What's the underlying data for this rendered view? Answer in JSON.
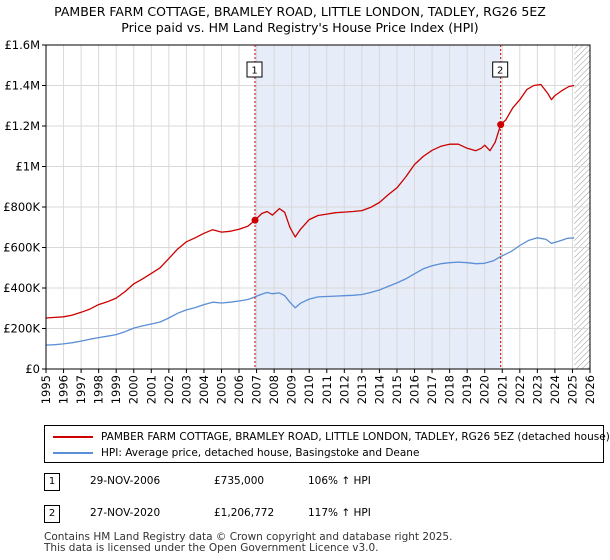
{
  "chart_data": {
    "type": "line",
    "title": "PAMBER FARM COTTAGE, BRAMLEY ROAD, LITTLE LONDON, TADLEY, RG26 5EZ",
    "subtitle": "Price paid vs. HM Land Registry's House Price Index (HPI)",
    "xlabel": "",
    "ylabel": "",
    "xlim": [
      1995,
      2026
    ],
    "ylim": [
      0,
      1600000
    ],
    "y_ticks": [
      {
        "value": 0,
        "label": "£0"
      },
      {
        "value": 200000,
        "label": "£200K"
      },
      {
        "value": 400000,
        "label": "£400K"
      },
      {
        "value": 600000,
        "label": "£600K"
      },
      {
        "value": 800000,
        "label": "£800K"
      },
      {
        "value": 1000000,
        "label": "£1M"
      },
      {
        "value": 1200000,
        "label": "£1.2M"
      },
      {
        "value": 1400000,
        "label": "£1.4M"
      },
      {
        "value": 1600000,
        "label": "£1.6M"
      }
    ],
    "x_ticks": [
      "1995",
      "1996",
      "1997",
      "1998",
      "1999",
      "2000",
      "2001",
      "2002",
      "2003",
      "2004",
      "2005",
      "2006",
      "2007",
      "2008",
      "2009",
      "2010",
      "2011",
      "2012",
      "2013",
      "2014",
      "2015",
      "2016",
      "2017",
      "2018",
      "2019",
      "2020",
      "2021",
      "2022",
      "2023",
      "2024",
      "2025",
      "2026"
    ],
    "grid": true,
    "shaded_period": [
      2006.91,
      2020.91
    ],
    "forecast_hatch_from": 2025.1,
    "series": [
      {
        "name": "PAMBER FARM COTTAGE, BRAMLEY ROAD, LITTLE LONDON, TADLEY, RG26 5EZ (detached house)",
        "color": "#cc0000",
        "points": [
          [
            1995.0,
            252000
          ],
          [
            1995.5,
            255000
          ],
          [
            1996.0,
            258000
          ],
          [
            1996.5,
            266000
          ],
          [
            1997.0,
            280000
          ],
          [
            1997.5,
            296000
          ],
          [
            1998.0,
            318000
          ],
          [
            1998.5,
            332000
          ],
          [
            1999.0,
            350000
          ],
          [
            1999.5,
            382000
          ],
          [
            2000.0,
            420000
          ],
          [
            2000.5,
            445000
          ],
          [
            2001.0,
            472000
          ],
          [
            2001.5,
            500000
          ],
          [
            2002.0,
            545000
          ],
          [
            2002.5,
            592000
          ],
          [
            2003.0,
            628000
          ],
          [
            2003.5,
            648000
          ],
          [
            2004.0,
            670000
          ],
          [
            2004.5,
            688000
          ],
          [
            2005.0,
            676000
          ],
          [
            2005.5,
            680000
          ],
          [
            2006.0,
            690000
          ],
          [
            2006.5,
            705000
          ],
          [
            2006.91,
            735000
          ],
          [
            2007.3,
            768000
          ],
          [
            2007.6,
            778000
          ],
          [
            2007.9,
            760000
          ],
          [
            2008.3,
            792000
          ],
          [
            2008.6,
            774000
          ],
          [
            2008.9,
            700000
          ],
          [
            2009.2,
            652000
          ],
          [
            2009.5,
            690000
          ],
          [
            2010.0,
            738000
          ],
          [
            2010.5,
            758000
          ],
          [
            2011.0,
            765000
          ],
          [
            2011.5,
            772000
          ],
          [
            2012.0,
            775000
          ],
          [
            2012.5,
            778000
          ],
          [
            2013.0,
            782000
          ],
          [
            2013.5,
            798000
          ],
          [
            2014.0,
            822000
          ],
          [
            2014.5,
            860000
          ],
          [
            2015.0,
            895000
          ],
          [
            2015.5,
            948000
          ],
          [
            2016.0,
            1010000
          ],
          [
            2016.5,
            1050000
          ],
          [
            2017.0,
            1080000
          ],
          [
            2017.5,
            1100000
          ],
          [
            2018.0,
            1110000
          ],
          [
            2018.5,
            1110000
          ],
          [
            2019.0,
            1090000
          ],
          [
            2019.5,
            1078000
          ],
          [
            2019.8,
            1090000
          ],
          [
            2020.0,
            1105000
          ],
          [
            2020.3,
            1078000
          ],
          [
            2020.6,
            1120000
          ],
          [
            2020.91,
            1206772
          ],
          [
            2021.2,
            1230000
          ],
          [
            2021.6,
            1290000
          ],
          [
            2022.0,
            1330000
          ],
          [
            2022.4,
            1380000
          ],
          [
            2022.8,
            1400000
          ],
          [
            2023.2,
            1405000
          ],
          [
            2023.6,
            1360000
          ],
          [
            2023.8,
            1330000
          ],
          [
            2024.0,
            1350000
          ],
          [
            2024.4,
            1375000
          ],
          [
            2024.8,
            1395000
          ],
          [
            2025.1,
            1400000
          ]
        ]
      },
      {
        "name": "HPI: Average price, detached house, Basingstoke and Deane",
        "color": "#5b8fd6",
        "points": [
          [
            1995.0,
            118000
          ],
          [
            1995.5,
            120000
          ],
          [
            1996.0,
            124000
          ],
          [
            1996.5,
            130000
          ],
          [
            1997.0,
            138000
          ],
          [
            1997.5,
            147000
          ],
          [
            1998.0,
            155000
          ],
          [
            1998.5,
            162000
          ],
          [
            1999.0,
            170000
          ],
          [
            1999.5,
            184000
          ],
          [
            2000.0,
            202000
          ],
          [
            2000.5,
            213000
          ],
          [
            2001.0,
            222000
          ],
          [
            2001.5,
            232000
          ],
          [
            2002.0,
            252000
          ],
          [
            2002.5,
            275000
          ],
          [
            2003.0,
            292000
          ],
          [
            2003.5,
            303000
          ],
          [
            2004.0,
            318000
          ],
          [
            2004.5,
            330000
          ],
          [
            2005.0,
            326000
          ],
          [
            2005.5,
            330000
          ],
          [
            2006.0,
            336000
          ],
          [
            2006.5,
            343000
          ],
          [
            2006.91,
            356000
          ],
          [
            2007.3,
            370000
          ],
          [
            2007.6,
            378000
          ],
          [
            2007.9,
            372000
          ],
          [
            2008.3,
            376000
          ],
          [
            2008.6,
            362000
          ],
          [
            2008.9,
            330000
          ],
          [
            2009.2,
            302000
          ],
          [
            2009.5,
            325000
          ],
          [
            2010.0,
            345000
          ],
          [
            2010.5,
            356000
          ],
          [
            2011.0,
            358000
          ],
          [
            2011.5,
            360000
          ],
          [
            2012.0,
            362000
          ],
          [
            2012.5,
            364000
          ],
          [
            2013.0,
            368000
          ],
          [
            2013.5,
            378000
          ],
          [
            2014.0,
            390000
          ],
          [
            2014.5,
            408000
          ],
          [
            2015.0,
            425000
          ],
          [
            2015.5,
            445000
          ],
          [
            2016.0,
            470000
          ],
          [
            2016.5,
            495000
          ],
          [
            2017.0,
            510000
          ],
          [
            2017.5,
            520000
          ],
          [
            2018.0,
            525000
          ],
          [
            2018.5,
            528000
          ],
          [
            2019.0,
            525000
          ],
          [
            2019.5,
            520000
          ],
          [
            2020.0,
            522000
          ],
          [
            2020.5,
            535000
          ],
          [
            2020.91,
            555000
          ],
          [
            2021.5,
            580000
          ],
          [
            2022.0,
            610000
          ],
          [
            2022.5,
            635000
          ],
          [
            2023.0,
            648000
          ],
          [
            2023.5,
            640000
          ],
          [
            2023.8,
            620000
          ],
          [
            2024.2,
            630000
          ],
          [
            2024.7,
            645000
          ],
          [
            2025.1,
            648000
          ]
        ]
      }
    ],
    "sales": [
      {
        "label": "1",
        "date": "29-NOV-2006",
        "x": 2006.91,
        "price": 735000,
        "price_text": "£735,000",
        "hpi_text": "106% ↑ HPI"
      },
      {
        "label": "2",
        "date": "27-NOV-2020",
        "x": 2020.91,
        "price": 1206772,
        "price_text": "£1,206,772",
        "hpi_text": "117% ↑ HPI"
      }
    ]
  },
  "footer": {
    "line1": "Contains HM Land Registry data © Crown copyright and database right 2025.",
    "line2": "This data is licensed under the Open Government Licence v3.0."
  },
  "colors": {
    "property": "#cc0000",
    "hpi": "#5b8fd6",
    "shade": "#e6ecf8",
    "grid": "#d9d9d9"
  }
}
